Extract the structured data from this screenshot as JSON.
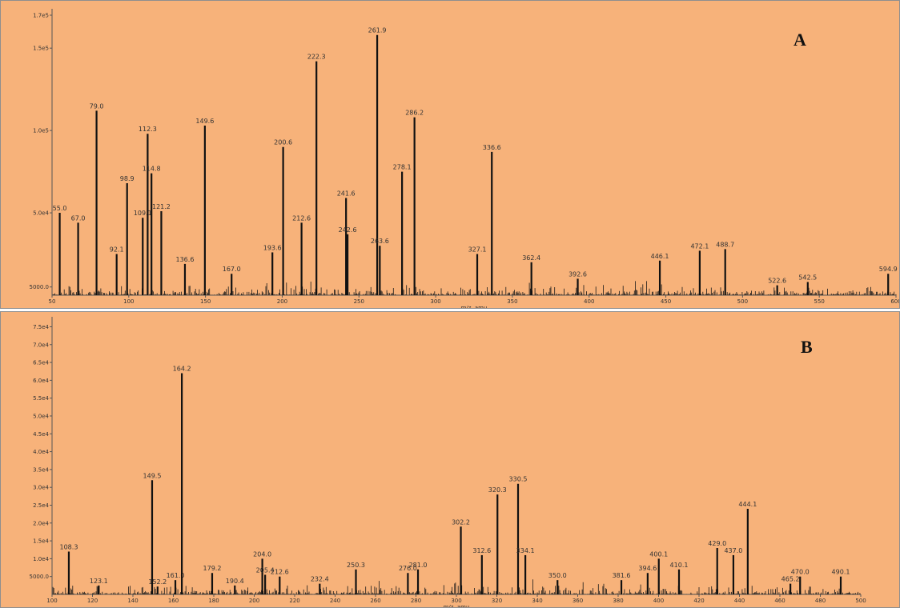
{
  "chart_data": [
    {
      "type": "bar",
      "panel_label": "A",
      "xlabel": "m/z, amu",
      "ylabel": "",
      "xlim": [
        50,
        600
      ],
      "ylim": [
        0,
        170000
      ],
      "x_ticks": [
        "50",
        "100",
        "150",
        "200",
        "250",
        "300",
        "350",
        "400",
        "450",
        "500",
        "550",
        "600"
      ],
      "y_ticks": [
        "5000.0",
        "5.0e4",
        "1.0e5",
        "1.5e5",
        "1.7e5"
      ],
      "y_tick_values": [
        5000,
        50000,
        100000,
        150000,
        170000
      ],
      "grid": false,
      "peaks": [
        {
          "x": 55.0,
          "y": 50000,
          "label": "55.0"
        },
        {
          "x": 67.0,
          "y": 44000,
          "label": "67.0"
        },
        {
          "x": 79.0,
          "y": 112000,
          "label": "79.0"
        },
        {
          "x": 92.1,
          "y": 25000,
          "label": "92.1"
        },
        {
          "x": 98.9,
          "y": 68000,
          "label": "98.9"
        },
        {
          "x": 109.1,
          "y": 47000,
          "label": "109.1"
        },
        {
          "x": 112.3,
          "y": 98000,
          "label": "112.3"
        },
        {
          "x": 114.8,
          "y": 74000,
          "label": "114.8"
        },
        {
          "x": 121.2,
          "y": 51000,
          "label": "121.2"
        },
        {
          "x": 136.6,
          "y": 19000,
          "label": "136.6"
        },
        {
          "x": 149.6,
          "y": 103000,
          "label": "149.6"
        },
        {
          "x": 167.0,
          "y": 13000,
          "label": "167.0"
        },
        {
          "x": 193.6,
          "y": 26000,
          "label": "193.6"
        },
        {
          "x": 200.6,
          "y": 90000,
          "label": "200.6"
        },
        {
          "x": 212.6,
          "y": 44000,
          "label": "212.6"
        },
        {
          "x": 222.3,
          "y": 142000,
          "label": "222.3"
        },
        {
          "x": 241.6,
          "y": 59000,
          "label": "241.6"
        },
        {
          "x": 242.6,
          "y": 37000,
          "label": "242.6"
        },
        {
          "x": 261.9,
          "y": 158000,
          "label": "261.9"
        },
        {
          "x": 263.6,
          "y": 30000,
          "label": "263.6"
        },
        {
          "x": 278.1,
          "y": 75000,
          "label": "278.1"
        },
        {
          "x": 286.2,
          "y": 108000,
          "label": "286.2"
        },
        {
          "x": 327.1,
          "y": 25000,
          "label": "327.1"
        },
        {
          "x": 336.6,
          "y": 87000,
          "label": "336.6"
        },
        {
          "x": 362.4,
          "y": 20000,
          "label": "362.4"
        },
        {
          "x": 392.6,
          "y": 10000,
          "label": "392.6"
        },
        {
          "x": 446.1,
          "y": 21000,
          "label": "446.1"
        },
        {
          "x": 472.1,
          "y": 27000,
          "label": "472.1"
        },
        {
          "x": 488.7,
          "y": 28000,
          "label": "488.7"
        },
        {
          "x": 522.6,
          "y": 6000,
          "label": "522.6"
        },
        {
          "x": 542.5,
          "y": 8000,
          "label": "542.5"
        },
        {
          "x": 594.9,
          "y": 13000,
          "label": "594.9"
        }
      ]
    },
    {
      "type": "bar",
      "panel_label": "B",
      "xlabel": "m/z, amu",
      "ylabel": "",
      "xlim": [
        100,
        500
      ],
      "ylim": [
        0,
        76000
      ],
      "x_ticks": [
        "100",
        "120",
        "140",
        "160",
        "180",
        "200",
        "220",
        "240",
        "260",
        "280",
        "300",
        "320",
        "340",
        "360",
        "380",
        "400",
        "420",
        "440",
        "460",
        "480",
        "500"
      ],
      "y_ticks": [
        "5000.0",
        "1.0e4",
        "1.5e4",
        "2.0e4",
        "2.5e4",
        "3.0e4",
        "3.5e4",
        "4.0e4",
        "4.5e4",
        "5.0e4",
        "5.5e4",
        "6.0e4",
        "6.5e4",
        "7.0e4",
        "7.5e4"
      ],
      "y_tick_values": [
        5000,
        10000,
        15000,
        20000,
        25000,
        30000,
        35000,
        40000,
        45000,
        50000,
        55000,
        60000,
        65000,
        70000,
        75000
      ],
      "grid": false,
      "peaks": [
        {
          "x": 108.3,
          "y": 12000,
          "label": "108.3"
        },
        {
          "x": 123.1,
          "y": 2500,
          "label": "123.1"
        },
        {
          "x": 152.2,
          "y": 2200,
          "label": "152.2"
        },
        {
          "x": 149.5,
          "y": 32000,
          "label": "149.5"
        },
        {
          "x": 161.0,
          "y": 4000,
          "label": "161.0"
        },
        {
          "x": 164.2,
          "y": 62000,
          "label": "164.2"
        },
        {
          "x": 179.2,
          "y": 6000,
          "label": "179.2"
        },
        {
          "x": 190.4,
          "y": 2500,
          "label": "190.4"
        },
        {
          "x": 204.0,
          "y": 10000,
          "label": "204.0"
        },
        {
          "x": 205.4,
          "y": 5500,
          "label": "205.4"
        },
        {
          "x": 212.6,
          "y": 5000,
          "label": "212.6"
        },
        {
          "x": 232.4,
          "y": 3000,
          "label": "232.4"
        },
        {
          "x": 250.3,
          "y": 7000,
          "label": "250.3"
        },
        {
          "x": 276.0,
          "y": 6000,
          "label": "276.0"
        },
        {
          "x": 281.0,
          "y": 7000,
          "label": "281.0"
        },
        {
          "x": 302.2,
          "y": 19000,
          "label": "302.2"
        },
        {
          "x": 312.6,
          "y": 11000,
          "label": "312.6"
        },
        {
          "x": 320.3,
          "y": 28000,
          "label": "320.3"
        },
        {
          "x": 330.5,
          "y": 31000,
          "label": "330.5"
        },
        {
          "x": 334.1,
          "y": 11000,
          "label": "334.1"
        },
        {
          "x": 350.0,
          "y": 4000,
          "label": "350.0"
        },
        {
          "x": 381.6,
          "y": 4000,
          "label": "381.6"
        },
        {
          "x": 394.6,
          "y": 6000,
          "label": "394.6"
        },
        {
          "x": 400.1,
          "y": 10000,
          "label": "400.1"
        },
        {
          "x": 410.1,
          "y": 7000,
          "label": "410.1"
        },
        {
          "x": 429.0,
          "y": 13000,
          "label": "429.0"
        },
        {
          "x": 437.0,
          "y": 11000,
          "label": "437.0"
        },
        {
          "x": 444.1,
          "y": 24000,
          "label": "444.1"
        },
        {
          "x": 465.2,
          "y": 3000,
          "label": "465.2"
        },
        {
          "x": 470.0,
          "y": 5000,
          "label": "470.0"
        },
        {
          "x": 490.1,
          "y": 5000,
          "label": "490.1"
        }
      ]
    }
  ]
}
